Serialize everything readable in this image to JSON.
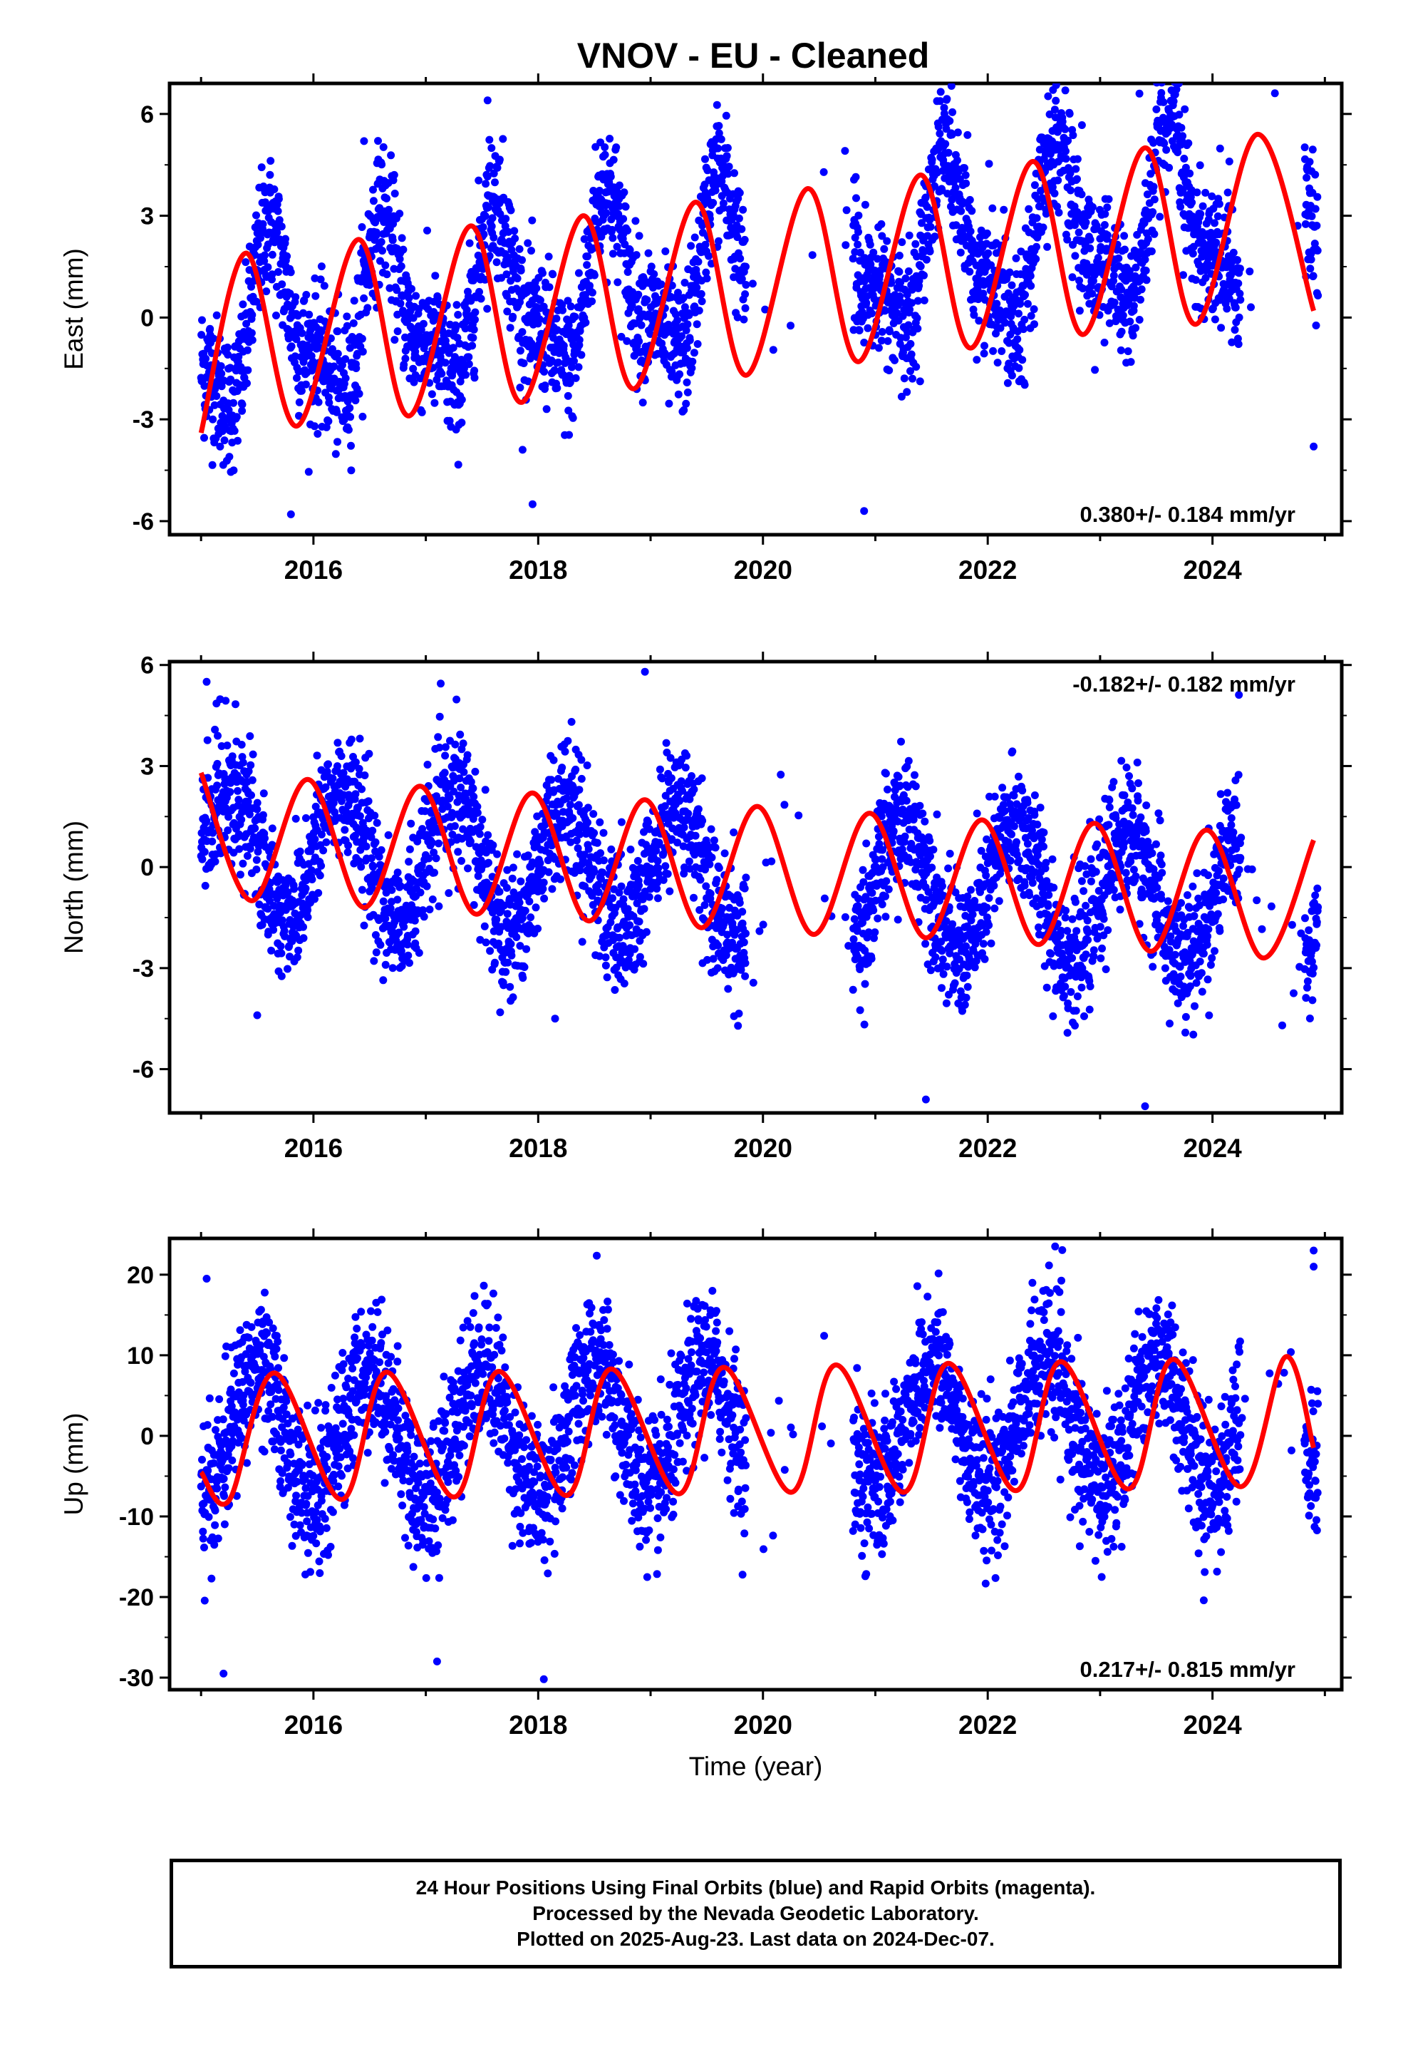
{
  "title": "VNOV  - EU - Cleaned",
  "chart_data": [
    {
      "type": "scatter",
      "panel": "east",
      "ylabel": "East (mm)",
      "xlabel": "",
      "xlim": [
        2014.72,
        2025.15
      ],
      "ylim": [
        -6.4,
        6.9
      ],
      "yticks": [
        -6,
        -3,
        0,
        3,
        6
      ],
      "xticks": [
        2016,
        2018,
        2020,
        2022,
        2024
      ],
      "grid": false,
      "rate_text": "0.380+/- 0.184 mm/yr",
      "rate_position": "bottom-right",
      "series": [
        {
          "kind": "points",
          "color": "#0000ff",
          "model": {
            "t0": 2015.0,
            "intercept": -0.5,
            "slope": 0.38,
            "annual_amp": 2.2,
            "annual_phase_deg": 220,
            "semi_amp": 0.9,
            "semi_phase_deg": 30,
            "scatter": 1.0
          },
          "outliers": [
            [
              2015.8,
              -5.8
            ],
            [
              2017.95,
              -5.5
            ],
            [
              2020.9,
              -5.7
            ],
            [
              2023.35,
              6.6
            ],
            [
              2016.45,
              5.2
            ],
            [
              2017.55,
              6.4
            ],
            [
              2024.15,
              4.6
            ],
            [
              2024.9,
              -3.8
            ]
          ]
        },
        {
          "kind": "fit",
          "color": "#ff0000",
          "points": [
            [
              2015.0,
              -3.4
            ],
            [
              2015.4,
              1.9
            ],
            [
              2015.85,
              -3.2
            ],
            [
              2016.4,
              2.3
            ],
            [
              2016.85,
              -2.9
            ],
            [
              2017.4,
              2.7
            ],
            [
              2017.85,
              -2.5
            ],
            [
              2018.4,
              3.0
            ],
            [
              2018.85,
              -2.1
            ],
            [
              2019.4,
              3.4
            ],
            [
              2019.85,
              -1.7
            ],
            [
              2020.4,
              3.8
            ],
            [
              2020.85,
              -1.3
            ],
            [
              2021.4,
              4.2
            ],
            [
              2021.85,
              -0.9
            ],
            [
              2022.4,
              4.6
            ],
            [
              2022.85,
              -0.5
            ],
            [
              2023.4,
              5.0
            ],
            [
              2023.85,
              -0.2
            ],
            [
              2024.4,
              5.4
            ],
            [
              2024.9,
              0.2
            ]
          ]
        }
      ],
      "gaps": [
        [
          2019.85,
          2020.8
        ],
        [
          2024.25,
          2024.82
        ]
      ]
    },
    {
      "type": "scatter",
      "panel": "north",
      "ylabel": "North (mm)",
      "xlabel": "",
      "xlim": [
        2014.72,
        2025.15
      ],
      "ylim": [
        -7.3,
        6.1
      ],
      "yticks": [
        -6,
        -3,
        0,
        3,
        6
      ],
      "xticks": [
        2016,
        2018,
        2020,
        2022,
        2024
      ],
      "grid": false,
      "rate_text": "-0.182+/- 0.182 mm/yr",
      "rate_position": "top-right",
      "series": [
        {
          "kind": "points",
          "color": "#0000ff",
          "model": {
            "t0": 2015.0,
            "intercept": 0.6,
            "slope": -0.18,
            "annual_amp": 1.9,
            "annual_phase_deg": 0,
            "semi_amp": 0.0,
            "semi_phase_deg": 0,
            "scatter": 1.0
          },
          "outliers": [
            [
              2015.05,
              5.5
            ],
            [
              2018.95,
              5.8
            ],
            [
              2021.45,
              -6.9
            ],
            [
              2023.4,
              -7.1
            ],
            [
              2018.15,
              -4.5
            ],
            [
              2015.5,
              -4.4
            ]
          ]
        },
        {
          "kind": "fit",
          "color": "#ff0000",
          "points": [
            [
              2015.0,
              2.8
            ],
            [
              2015.45,
              -1.0
            ],
            [
              2015.95,
              2.6
            ],
            [
              2016.45,
              -1.2
            ],
            [
              2016.95,
              2.4
            ],
            [
              2017.45,
              -1.4
            ],
            [
              2017.95,
              2.2
            ],
            [
              2018.45,
              -1.6
            ],
            [
              2018.95,
              2.0
            ],
            [
              2019.45,
              -1.8
            ],
            [
              2019.95,
              1.8
            ],
            [
              2020.45,
              -2.0
            ],
            [
              2020.95,
              1.6
            ],
            [
              2021.45,
              -2.1
            ],
            [
              2021.95,
              1.4
            ],
            [
              2022.45,
              -2.3
            ],
            [
              2022.95,
              1.3
            ],
            [
              2023.45,
              -2.5
            ],
            [
              2023.95,
              1.1
            ],
            [
              2024.45,
              -2.7
            ],
            [
              2024.9,
              0.8
            ]
          ]
        }
      ],
      "gaps": [
        [
          2019.85,
          2020.8
        ],
        [
          2024.25,
          2024.82
        ]
      ]
    },
    {
      "type": "scatter",
      "panel": "up",
      "ylabel": "Up (mm)",
      "xlabel": "Time (year)",
      "xlim": [
        2014.72,
        2025.15
      ],
      "ylim": [
        -31.5,
        24.5
      ],
      "yticks": [
        -30,
        -20,
        -10,
        0,
        10,
        20
      ],
      "xticks": [
        2016,
        2018,
        2020,
        2022,
        2024
      ],
      "grid": false,
      "rate_text": "0.217+/- 0.815 mm/yr",
      "rate_position": "bottom-right",
      "series": [
        {
          "kind": "points",
          "color": "#0000ff",
          "model": {
            "t0": 2015.0,
            "intercept": 0.0,
            "slope": 0.22,
            "annual_amp": 8.0,
            "annual_phase_deg": 270,
            "semi_amp": 0.0,
            "semi_phase_deg": 0,
            "scatter": 4.5
          },
          "outliers": [
            [
              2015.2,
              -29.5
            ],
            [
              2017.1,
              -28.0
            ],
            [
              2018.05,
              -30.2
            ],
            [
              2022.6,
              23.5
            ],
            [
              2024.9,
              23.0
            ],
            [
              2024.9,
              21.0
            ],
            [
              2015.05,
              19.5
            ]
          ]
        },
        {
          "kind": "fit",
          "color": "#ff0000",
          "points": [
            [
              2015.0,
              -4.5
            ],
            [
              2015.25,
              -8.0
            ],
            [
              2015.65,
              7.8
            ],
            [
              2016.25,
              -7.9
            ],
            [
              2016.65,
              7.9
            ],
            [
              2017.25,
              -7.6
            ],
            [
              2017.65,
              8.0
            ],
            [
              2018.25,
              -7.4
            ],
            [
              2018.65,
              8.3
            ],
            [
              2019.25,
              -7.2
            ],
            [
              2019.65,
              8.5
            ],
            [
              2020.25,
              -7.0
            ],
            [
              2020.65,
              8.8
            ],
            [
              2021.25,
              -7.0
            ],
            [
              2021.65,
              9.0
            ],
            [
              2022.25,
              -6.8
            ],
            [
              2022.65,
              9.2
            ],
            [
              2023.25,
              -6.6
            ],
            [
              2023.65,
              9.5
            ],
            [
              2024.25,
              -6.3
            ],
            [
              2024.65,
              9.8
            ],
            [
              2024.9,
              -1.5
            ]
          ]
        }
      ],
      "gaps": [
        [
          2019.85,
          2020.8
        ],
        [
          2024.25,
          2024.82
        ]
      ]
    }
  ],
  "caption": {
    "line1": "24 Hour Positions Using Final Orbits (blue) and Rapid Orbits (magenta).",
    "line2": "Processed by the Nevada Geodetic Laboratory.",
    "line3": "Plotted on 2025-Aug-23. Last data on 2024-Dec-07."
  }
}
